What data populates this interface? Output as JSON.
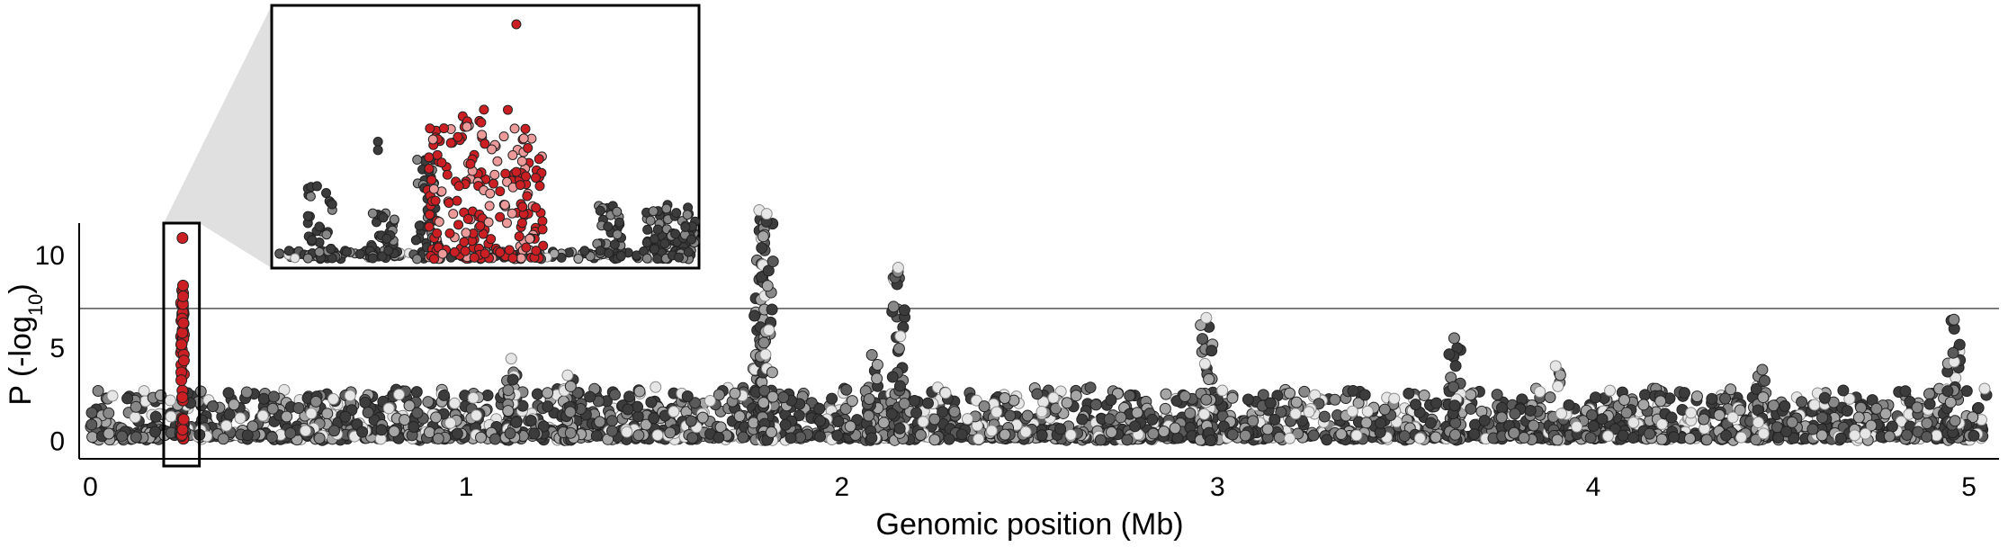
{
  "chart_data": {
    "type": "scatter",
    "subtype": "manhattan",
    "title": "",
    "xlabel": "Genomic position (Mb)",
    "ylabel": "P (-log",
    "ylabel_sub": "10",
    "ylabel_suffix": ")",
    "xlim": [
      -0.03,
      5.08
    ],
    "ylim": [
      -1,
      11.7
    ],
    "xticks": [
      0,
      1,
      2,
      3,
      4,
      5
    ],
    "xtick_labels": [
      "0",
      "1",
      "2",
      "3",
      "4",
      "5"
    ],
    "yticks": [
      0,
      5,
      10
    ],
    "ytick_labels": [
      "0",
      "5",
      "10"
    ],
    "threshold": 7.1,
    "highlight_region": [
      0.195,
      0.29
    ],
    "inset": {
      "x_range": [
        0.05,
        0.55
      ],
      "y_range": [
        0,
        11.5
      ],
      "description": "zoom of highlighted region"
    },
    "colors": {
      "highlight": "#cc1f24",
      "highlight_light": "#ec9a9a",
      "dark": "#3c3c3c",
      "mid": "#888888",
      "light": "#e6e6e6",
      "threshold_line": "#555555",
      "connector": "#e0e0e0"
    },
    "peaks": [
      {
        "x": 0.245,
        "max_y": 10.9,
        "highlight": true
      },
      {
        "x": 1.78,
        "max_y": 12.4
      },
      {
        "x": 1.8,
        "max_y": 12.2
      },
      {
        "x": 2.15,
        "max_y": 9.3
      },
      {
        "x": 2.97,
        "max_y": 6.6
      },
      {
        "x": 3.63,
        "max_y": 5.5
      },
      {
        "x": 3.9,
        "max_y": 4.0
      },
      {
        "x": 4.45,
        "max_y": 3.8
      },
      {
        "x": 4.96,
        "max_y": 6.5
      },
      {
        "x": 2.08,
        "max_y": 4.6
      },
      {
        "x": 1.12,
        "max_y": 4.4
      },
      {
        "x": 1.27,
        "max_y": 3.5
      }
    ]
  }
}
